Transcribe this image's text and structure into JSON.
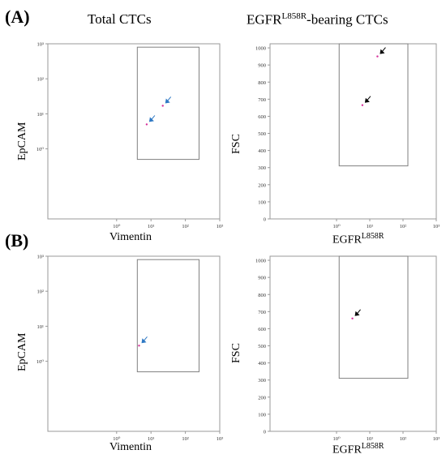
{
  "panel_labels": {
    "a": "(A)",
    "b": "(B)"
  },
  "column_titles": {
    "left": "Total CTCs",
    "right_main": "EGFR",
    "right_sup": "L858R",
    "right_tail": "-bearing CTCs"
  },
  "colors": {
    "event": "#d6309a",
    "arrow_blue": "#2e78c4",
    "arrow_black": "#000000",
    "gate": "#808080",
    "frame": "#999999",
    "tick_text": "#333333"
  },
  "chart_data": [
    {
      "id": "A-left",
      "type": "scatter",
      "xscale": "log",
      "yscale": "log",
      "xlabel": "Vimentin",
      "ylabel": "EpCAM",
      "xlim": [
        0.01,
        1000
      ],
      "ylim": [
        0.01,
        1000
      ],
      "xticks": [
        1,
        10,
        100,
        1000
      ],
      "yticks": [
        1,
        10,
        100,
        1000
      ],
      "xtick_labels": [
        "10⁰",
        "10¹",
        "10²",
        "10³"
      ],
      "ytick_labels": [
        "10⁰",
        "10¹",
        "10²",
        "10³"
      ],
      "gate": {
        "x": [
          4,
          250
        ],
        "y": [
          0.5,
          800
        ]
      },
      "points": [
        {
          "x": 7.5,
          "y": 5
        },
        {
          "x": 22,
          "y": 17
        }
      ],
      "arrow_color": "blue"
    },
    {
      "id": "A-right",
      "type": "scatter",
      "xscale": "log",
      "yscale": "linear",
      "xlabel_main": "EGFR",
      "xlabel_sup": "L858R",
      "ylabel": "FSC",
      "xlim": [
        0.01,
        1000
      ],
      "ylim": [
        0,
        1024
      ],
      "xticks": [
        1,
        10,
        100,
        1000
      ],
      "xtick_labels": [
        "10⁰",
        "10¹",
        "10²",
        "10³"
      ],
      "yticks": [
        0,
        100,
        200,
        300,
        400,
        500,
        600,
        700,
        800,
        900,
        1000
      ],
      "ytick_labels": [
        "0",
        "100",
        "200",
        "300",
        "400",
        "500",
        "600",
        "700",
        "800",
        "900",
        "1000"
      ],
      "gate": {
        "x": [
          1.2,
          140
        ],
        "y": [
          310,
          1024
        ]
      },
      "points": [
        {
          "x": 17,
          "y": 950
        },
        {
          "x": 6,
          "y": 665
        }
      ],
      "arrow_color": "black"
    },
    {
      "id": "B-left",
      "type": "scatter",
      "xscale": "log",
      "yscale": "log",
      "xlabel": "Vimentin",
      "ylabel": "EpCAM",
      "xlim": [
        0.01,
        1000
      ],
      "ylim": [
        0.01,
        1000
      ],
      "xticks": [
        1,
        10,
        100,
        1000
      ],
      "yticks": [
        1,
        10,
        100,
        1000
      ],
      "xtick_labels": [
        "10⁰",
        "10¹",
        "10²",
        "10³"
      ],
      "ytick_labels": [
        "10⁰",
        "10¹",
        "10²",
        "10³"
      ],
      "gate": {
        "x": [
          4,
          250
        ],
        "y": [
          0.5,
          800
        ]
      },
      "points": [
        {
          "x": 4.5,
          "y": 2.8
        }
      ],
      "arrow_color": "blue"
    },
    {
      "id": "B-right",
      "type": "scatter",
      "xscale": "log",
      "yscale": "linear",
      "xlabel_main": "EGFR",
      "xlabel_sup": "L858R",
      "ylabel": "FSC",
      "xlim": [
        0.01,
        1000
      ],
      "ylim": [
        0,
        1024
      ],
      "xticks": [
        1,
        10,
        100,
        1000
      ],
      "xtick_labels": [
        "10⁰",
        "10¹",
        "10²",
        "10³"
      ],
      "yticks": [
        0,
        100,
        200,
        300,
        400,
        500,
        600,
        700,
        800,
        900,
        1000
      ],
      "ytick_labels": [
        "0",
        "100",
        "200",
        "300",
        "400",
        "500",
        "600",
        "700",
        "800",
        "900",
        "1000"
      ],
      "gate": {
        "x": [
          1.2,
          140
        ],
        "y": [
          310,
          1024
        ]
      },
      "points": [
        {
          "x": 3,
          "y": 660
        }
      ],
      "arrow_color": "black"
    }
  ]
}
